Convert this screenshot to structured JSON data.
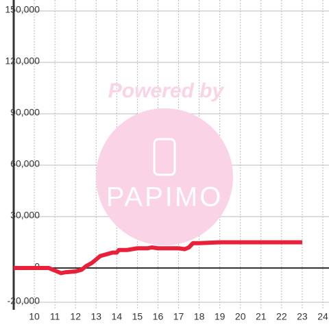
{
  "chart_data": {
    "type": "line",
    "x": [
      9,
      10.5,
      10.7,
      11,
      11.3,
      11.5,
      12,
      12.3,
      12.5,
      12.8,
      13,
      13.2,
      13.5,
      13.8,
      14,
      14.1,
      14.5,
      15,
      15.5,
      15.7,
      16,
      17,
      17.3,
      17.5,
      17.7,
      18,
      19,
      23
    ],
    "series": [
      {
        "color": "#e8203a",
        "values": [
          0,
          0,
          0,
          -1500,
          -3000,
          -2500,
          -2000,
          -1000,
          1000,
          3000,
          5000,
          7000,
          8000,
          9000,
          9000,
          10500,
          10500,
          11500,
          11500,
          12000,
          11500,
          11500,
          11000,
          12000,
          14500,
          14500,
          15000,
          15000
        ]
      }
    ],
    "xlim": [
      9,
      24.3
    ],
    "ylim": [
      -20000,
      150000
    ],
    "xticks": [
      10,
      11,
      12,
      13,
      14,
      15,
      16,
      17,
      18,
      19,
      20,
      21,
      22,
      23,
      24
    ],
    "yticks": [
      {
        "value": -20000,
        "label": "-20,000"
      },
      0,
      {
        "value": 30000,
        "label": "30,000"
      },
      {
        "value": 60000,
        "label": "60,000"
      },
      {
        "value": 90000,
        "label": "90,000"
      },
      {
        "value": 120000,
        "label": "120,000"
      },
      {
        "value": 150000,
        "label": "150,000"
      }
    ],
    "grid": true,
    "annotations": [
      "Powered by",
      "PAPIMO"
    ]
  }
}
